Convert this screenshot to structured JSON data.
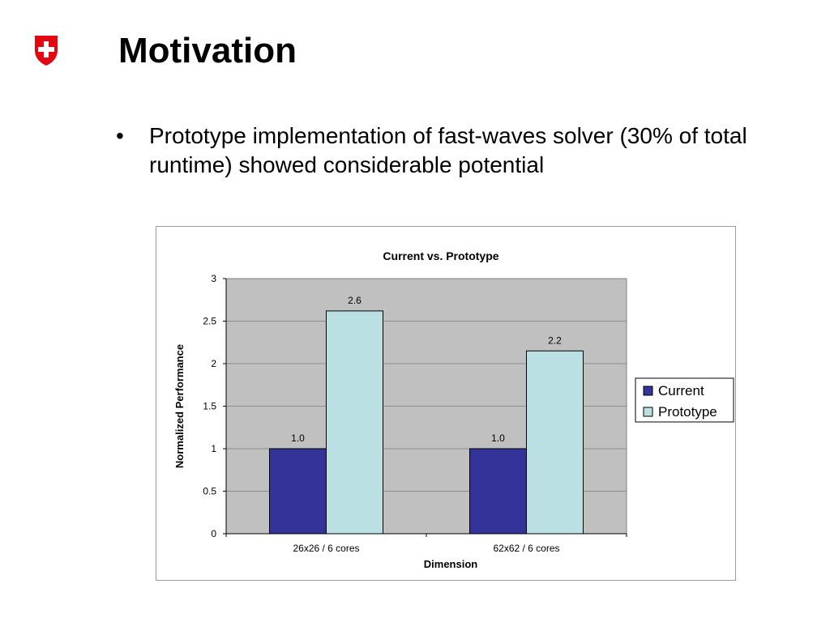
{
  "slide": {
    "title": "Motivation",
    "bullets": [
      "Prototype implementation of fast-waves solver (30% of total runtime) showed considerable potential"
    ],
    "bullet_glyph": "•",
    "logo_icon": "swiss-shield-icon",
    "logo_color": "#e30613"
  },
  "chart_data": {
    "type": "bar",
    "title": "Current vs. Prototype",
    "xlabel": "Dimension",
    "ylabel": "Normalized Performance",
    "categories": [
      "26x26 / 6 cores",
      "62x62 / 6 cores"
    ],
    "series": [
      {
        "name": "Current",
        "values": [
          1.0,
          1.0
        ],
        "labels": [
          "1.0",
          "1.0"
        ],
        "color": "#333399"
      },
      {
        "name": "Prototype",
        "values": [
          2.62,
          2.15
        ],
        "labels": [
          "2.6",
          "2.2"
        ],
        "color": "#bbe0e3"
      }
    ],
    "ylim": [
      0,
      3
    ],
    "yticks": [
      "0",
      "0.5",
      "1",
      "1.5",
      "2",
      "2.5",
      "3"
    ],
    "grid": true,
    "plot_background": "#c0c0c0",
    "legend": "right"
  }
}
